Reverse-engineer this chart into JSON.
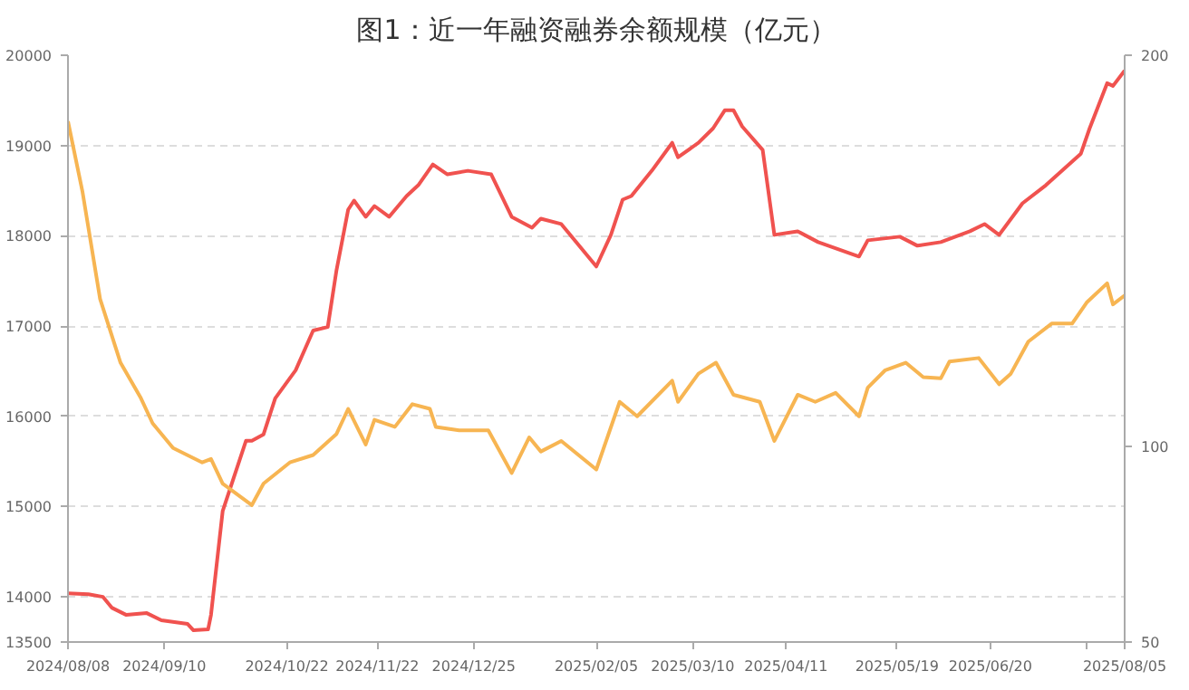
{
  "chart_data": {
    "type": "line",
    "title": "图1：近一年融资融券余额规模（亿元）",
    "xlim": [
      "2024-08-08",
      "2025-08-05"
    ],
    "xticks": [
      {
        "value": "2024-08-08",
        "label": "2024/08/08"
      },
      {
        "value": "2024-09-10",
        "label": "2024/09/10"
      },
      {
        "value": "2024-10-22",
        "label": "2024/10/22"
      },
      {
        "value": "2024-11-22",
        "label": "2024/11/22"
      },
      {
        "value": "2024-12-25",
        "label": "2024/12/25"
      },
      {
        "value": "2025-02-05",
        "label": "2025/02/05"
      },
      {
        "value": "2025-03-10",
        "label": "2025/03/10"
      },
      {
        "value": "2025-04-11",
        "label": "2025/04/11"
      },
      {
        "value": "2025-05-19",
        "label": "2025/05/19"
      },
      {
        "value": "2025-06-20",
        "label": "2025/06/20"
      },
      {
        "value": "2025-07-23",
        "label": null
      },
      {
        "value": "2025-08-05",
        "label": "2025/08/05"
      }
    ],
    "ylim": [
      13500,
      20000
    ],
    "yticks": [
      13500,
      14000,
      15000,
      16000,
      17000,
      18000,
      19000,
      20000
    ],
    "y2lim": [
      50,
      200
    ],
    "y2ticks": [
      50,
      100,
      200
    ],
    "grid": "y",
    "marker": "none",
    "line_style": "solid",
    "series": [
      {
        "color": "#f0524f",
        "x": [
          "2024-08-08",
          "2024-08-15",
          "2024-08-20",
          "2024-08-23",
          "2024-08-28",
          "2024-09-04",
          "2024-09-09",
          "2024-09-18",
          "2024-09-20",
          "2024-09-25",
          "2024-09-26",
          "2024-09-30",
          "2024-10-08",
          "2024-10-10",
          "2024-10-14",
          "2024-10-18",
          "2024-10-25",
          "2024-10-31",
          "2024-11-05",
          "2024-11-08",
          "2024-11-12",
          "2024-11-14",
          "2024-11-18",
          "2024-11-21",
          "2024-11-26",
          "2024-12-02",
          "2024-12-06",
          "2024-12-11",
          "2024-12-16",
          "2024-12-23",
          "2024-12-31",
          "2025-01-07",
          "2025-01-14",
          "2025-01-17",
          "2025-01-24",
          "2025-02-05",
          "2025-02-10",
          "2025-02-14",
          "2025-02-17",
          "2025-02-24",
          "2025-03-03",
          "2025-03-05",
          "2025-03-12",
          "2025-03-17",
          "2025-03-21",
          "2025-03-24",
          "2025-03-27",
          "2025-04-03",
          "2025-04-07",
          "2025-04-15",
          "2025-04-22",
          "2025-05-06",
          "2025-05-09",
          "2025-05-20",
          "2025-05-26",
          "2025-06-03",
          "2025-06-13",
          "2025-06-18",
          "2025-06-23",
          "2025-07-01",
          "2025-07-09",
          "2025-07-21",
          "2025-07-24",
          "2025-07-30",
          "2025-08-01",
          "2025-08-05"
        ],
        "values": [
          14040,
          14030,
          14000,
          13880,
          13800,
          13820,
          13740,
          13700,
          13630,
          13640,
          13800,
          14950,
          15730,
          15730,
          15800,
          16200,
          16510,
          16950,
          16990,
          17620,
          18290,
          18390,
          18210,
          18330,
          18210,
          18440,
          18560,
          18790,
          18680,
          18720,
          18680,
          18210,
          18090,
          18190,
          18130,
          17660,
          18010,
          18400,
          18440,
          18720,
          19030,
          18870,
          19030,
          19190,
          19390,
          19390,
          19210,
          18950,
          18010,
          18050,
          17930,
          17770,
          17950,
          17990,
          17890,
          17930,
          18050,
          18130,
          18010,
          18360,
          18560,
          18910,
          19190,
          19690,
          19660,
          19830
        ]
      },
      {
        "color": "#f7b552",
        "axis": "y2",
        "x": [
          "2024-08-08",
          "2024-08-13",
          "2024-08-19",
          "2024-08-26",
          "2024-09-02",
          "2024-09-06",
          "2024-09-13",
          "2024-09-23",
          "2024-09-26",
          "2024-09-30",
          "2024-10-10",
          "2024-10-14",
          "2024-10-23",
          "2024-10-31",
          "2024-11-08",
          "2024-11-12",
          "2024-11-18",
          "2024-11-21",
          "2024-11-28",
          "2024-12-04",
          "2024-12-10",
          "2024-12-12",
          "2024-12-20",
          "2024-12-30",
          "2025-01-07",
          "2025-01-13",
          "2025-01-17",
          "2025-01-24",
          "2025-02-05",
          "2025-02-13",
          "2025-02-19",
          "2025-03-03",
          "2025-03-05",
          "2025-03-12",
          "2025-03-18",
          "2025-03-24",
          "2025-04-02",
          "2025-04-07",
          "2025-04-15",
          "2025-04-21",
          "2025-04-28",
          "2025-05-06",
          "2025-05-09",
          "2025-05-15",
          "2025-05-22",
          "2025-05-28",
          "2025-06-03",
          "2025-06-06",
          "2025-06-16",
          "2025-06-23",
          "2025-06-27",
          "2025-07-03",
          "2025-07-11",
          "2025-07-18",
          "2025-07-23",
          "2025-07-30",
          "2025-08-01",
          "2025-08-05"
        ],
        "values": [
          183.1,
          165.0,
          137.7,
          121.4,
          112.3,
          105.9,
          99.6,
          95.9,
          96.8,
          90.5,
          85.0,
          90.5,
          95.9,
          97.8,
          103.2,
          109.6,
          100.5,
          106.8,
          105.0,
          110.8,
          109.6,
          105.0,
          104.1,
          104.1,
          93.2,
          102.3,
          98.7,
          101.4,
          94.1,
          111.4,
          107.7,
          116.8,
          111.4,
          118.6,
          121.4,
          113.2,
          111.4,
          101.4,
          113.2,
          111.4,
          113.7,
          107.7,
          115.0,
          119.5,
          121.4,
          117.7,
          117.4,
          121.7,
          122.6,
          115.9,
          118.6,
          126.8,
          131.4,
          131.4,
          136.8,
          141.7,
          136.3,
          138.6
        ]
      }
    ]
  }
}
